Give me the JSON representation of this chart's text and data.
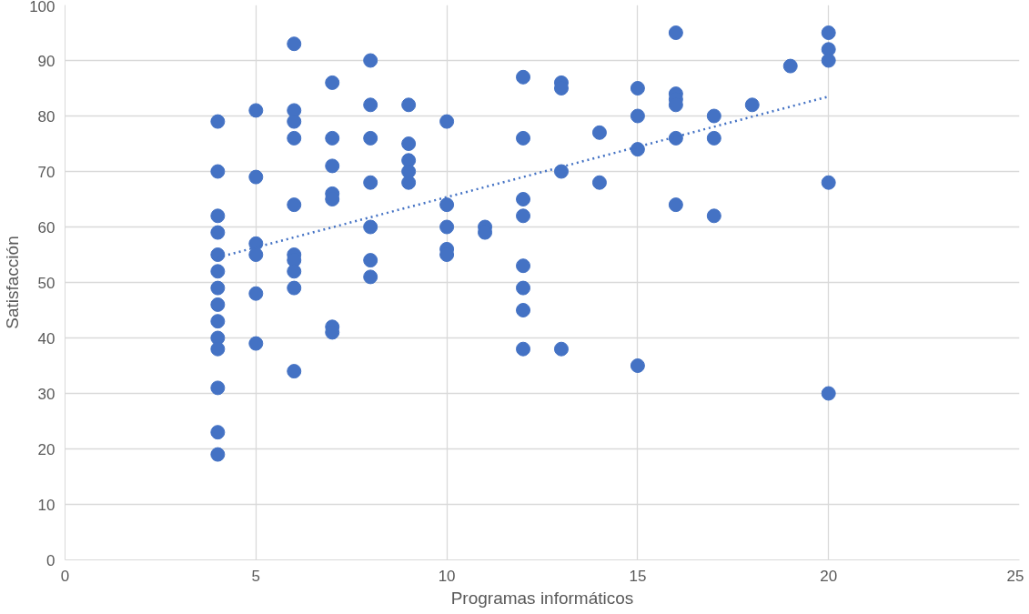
{
  "chart_data": {
    "type": "scatter",
    "xlabel": "Programas informáticos",
    "ylabel": "Satisfacción",
    "xlim": [
      0,
      25
    ],
    "xticks": [
      0,
      5,
      10,
      15,
      20,
      25
    ],
    "ylim": [
      0,
      100
    ],
    "yticks": [
      0,
      10,
      20,
      30,
      40,
      50,
      60,
      70,
      80,
      90,
      100
    ],
    "grid": true,
    "marker": "circle",
    "series": [
      {
        "color": "#4472c4",
        "x": [
          4,
          4,
          4,
          4,
          4,
          4,
          4,
          4,
          4,
          4,
          4,
          4,
          4,
          4,
          5,
          5,
          5,
          5,
          5,
          5,
          6,
          6,
          6,
          6,
          6,
          6,
          6,
          6,
          6,
          6,
          7,
          7,
          7,
          7,
          7,
          7,
          7,
          8,
          8,
          8,
          8,
          8,
          8,
          8,
          9,
          9,
          9,
          9,
          9,
          10,
          10,
          10,
          10,
          10,
          11,
          11,
          12,
          12,
          12,
          12,
          12,
          12,
          12,
          12,
          13,
          13,
          13,
          13,
          14,
          14,
          15,
          15,
          15,
          15,
          16,
          16,
          16,
          16,
          16,
          16,
          17,
          17,
          17,
          18,
          19,
          20,
          20,
          20,
          20,
          20
        ],
        "values": [
          79,
          70,
          62,
          59,
          55,
          52,
          49,
          46,
          43,
          40,
          38,
          31,
          23,
          19,
          81,
          69,
          57,
          55,
          48,
          39,
          93,
          81,
          79,
          76,
          64,
          55,
          54,
          52,
          49,
          34,
          86,
          76,
          71,
          66,
          65,
          42,
          41,
          90,
          82,
          76,
          68,
          60,
          54,
          51,
          82,
          75,
          72,
          70,
          68,
          79,
          64,
          60,
          56,
          55,
          60,
          59,
          87,
          76,
          65,
          62,
          53,
          49,
          45,
          38,
          86,
          85,
          70,
          38,
          77,
          68,
          85,
          80,
          74,
          35,
          95,
          84,
          83,
          82,
          76,
          64,
          80,
          76,
          62,
          82,
          89,
          95,
          92,
          90,
          68,
          30
        ]
      },
      {
        "type": "line",
        "color": "#4472c4",
        "line_style": "dotted",
        "marker": "none",
        "x": [
          4,
          20
        ],
        "values": [
          54.5,
          83.5
        ]
      }
    ]
  }
}
